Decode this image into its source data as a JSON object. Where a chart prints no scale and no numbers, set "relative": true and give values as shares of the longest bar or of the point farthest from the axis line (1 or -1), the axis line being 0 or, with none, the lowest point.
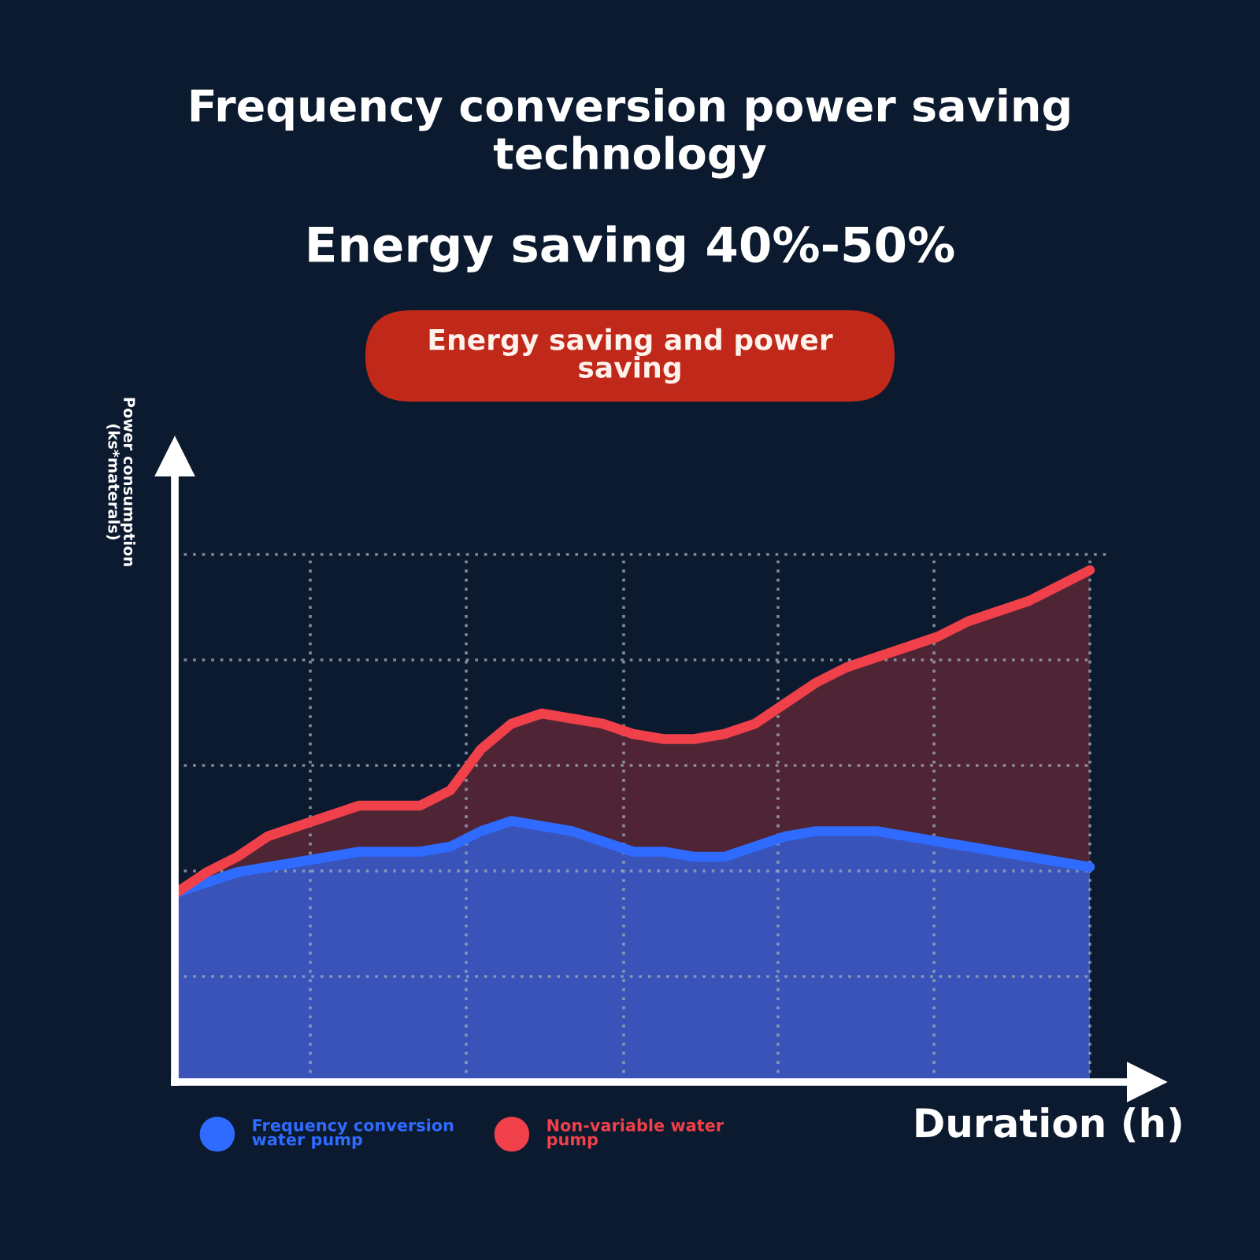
{
  "chart_data": {
    "type": "area",
    "title": "Frequency conversion power saving technology",
    "subtitle": "Energy saving 40%-50%",
    "annotations": [
      "Energy saving and power saving"
    ],
    "xlabel": "Duration (h)",
    "ylabel": "Power consumption (ks*materals)",
    "relative": true,
    "grid": true,
    "legend": "bottom",
    "categories": [
      null,
      null,
      null,
      null,
      null,
      null,
      null,
      null,
      null,
      null,
      null,
      null,
      null,
      null,
      null,
      null,
      null,
      null,
      null,
      null,
      null,
      null,
      null,
      null,
      null,
      null,
      null,
      null,
      null,
      null,
      null
    ],
    "series": [
      {
        "name": "Frequency conversion water pump",
        "color": "#2f6bff",
        "values": [
          0.37,
          0.39,
          0.41,
          0.42,
          0.43,
          0.44,
          0.45,
          0.45,
          0.45,
          0.46,
          0.49,
          0.51,
          0.5,
          0.49,
          0.47,
          0.45,
          0.45,
          0.44,
          0.44,
          0.46,
          0.48,
          0.49,
          0.49,
          0.49,
          0.48,
          0.47,
          0.46,
          0.45,
          0.44,
          0.43,
          0.42
        ]
      },
      {
        "name": "Non-variable water pump",
        "color": "#f0404a",
        "values": [
          0.37,
          0.41,
          0.44,
          0.48,
          0.5,
          0.52,
          0.54,
          0.54,
          0.54,
          0.57,
          0.65,
          0.7,
          0.72,
          0.71,
          0.7,
          0.68,
          0.67,
          0.67,
          0.68,
          0.7,
          0.74,
          0.78,
          0.81,
          0.83,
          0.85,
          0.87,
          0.9,
          0.92,
          0.94,
          0.97,
          1
        ]
      }
    ]
  }
}
